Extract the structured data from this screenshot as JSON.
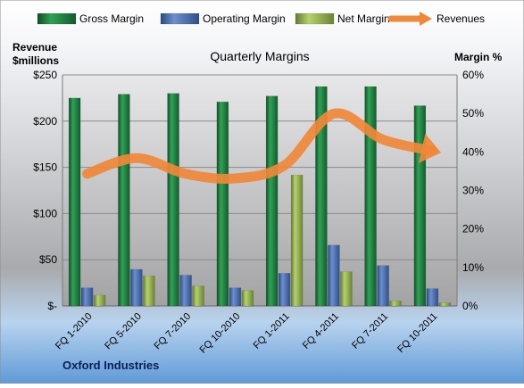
{
  "chart_data": {
    "type": "bar",
    "title": "Quarterly Margins",
    "company": "Oxford Industries",
    "left_axis_label": [
      "Revenue",
      "$millions"
    ],
    "right_axis_label": "Margin %",
    "categories": [
      "FQ 1-2010",
      "FQ 5-2010",
      "FQ 7-2010",
      "FQ 10-2010",
      "FQ 1-2011",
      "FQ 4-2011",
      "FQ 7-2011",
      "FQ 10-2011"
    ],
    "left_ticks": [
      "$-",
      "$50",
      "$100",
      "$150",
      "$200",
      "$250"
    ],
    "right_ticks": [
      "0%",
      "10%",
      "20%",
      "30%",
      "40%",
      "50%",
      "60%"
    ],
    "ylim_left": [
      0,
      250
    ],
    "ylim_right": [
      0,
      60
    ],
    "grid": true,
    "legend_position": "top",
    "series": [
      {
        "name": "Gross Margin",
        "axis": "right",
        "type": "bar",
        "color": "#1e7e3e",
        "values": [
          54,
          55,
          55.2,
          53,
          54.5,
          57,
          57,
          52
        ]
      },
      {
        "name": "Operating Margin",
        "axis": "right",
        "type": "bar",
        "color": "#4a6fb5",
        "values": [
          4.7,
          9.5,
          8,
          4.7,
          8.5,
          15.8,
          10.5,
          4.5
        ]
      },
      {
        "name": "Net Margin",
        "axis": "right",
        "type": "bar",
        "color": "#9bbb59",
        "values": [
          2.8,
          7.8,
          5.2,
          4,
          34,
          8.9,
          1.3,
          0.8
        ]
      },
      {
        "name": "Revenues",
        "axis": "left",
        "type": "line",
        "color": "#f0883a",
        "values": [
          143,
          160,
          143,
          138,
          152,
          208,
          180,
          168
        ]
      }
    ]
  }
}
